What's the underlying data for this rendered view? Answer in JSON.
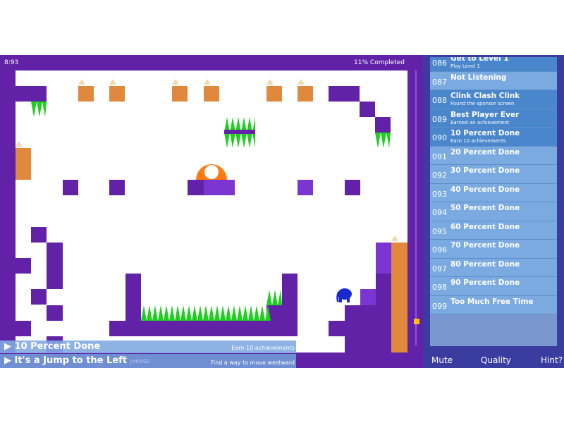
{
  "hud": {
    "timer": "8:93",
    "completion": "11% Completed"
  },
  "colors": {
    "wall": "#6222a8",
    "block_light": "#7b35d0",
    "crate": "#e0883c",
    "spikes": "#1fcf1f",
    "player": "#1a2ad0",
    "sidebar": "#3b3c9f",
    "achievement_done": "#4a86cc",
    "achievement_todo": "#7aaae0"
  },
  "player": {
    "icon": "elephant-icon"
  },
  "achievements": [
    {
      "num": "086",
      "title": "Get to Level 1",
      "desc": "Play Level 1",
      "done": true
    },
    {
      "num": "087",
      "title": "Not Listening",
      "desc": "",
      "done": false
    },
    {
      "num": "088",
      "title": "Clink Clash Clink",
      "desc": "Found the sponsor screen",
      "done": true
    },
    {
      "num": "089",
      "title": "Best Player Ever",
      "desc": "Earned an achievement",
      "done": true
    },
    {
      "num": "090",
      "title": "10 Percent Done",
      "desc": "Earn 10 achievements",
      "done": true
    },
    {
      "num": "091",
      "title": "20 Percent Done",
      "desc": "",
      "done": false
    },
    {
      "num": "092",
      "title": "30 Percent Done",
      "desc": "",
      "done": false
    },
    {
      "num": "093",
      "title": "40 Percent Done",
      "desc": "",
      "done": false
    },
    {
      "num": "094",
      "title": "50 Percent Done",
      "desc": "",
      "done": false
    },
    {
      "num": "095",
      "title": "60 Percent Done",
      "desc": "",
      "done": false
    },
    {
      "num": "096",
      "title": "70 Percent Done",
      "desc": "",
      "done": false
    },
    {
      "num": "097",
      "title": "80 Percent Done",
      "desc": "",
      "done": false
    },
    {
      "num": "098",
      "title": "90 Percent Done",
      "desc": "",
      "done": false
    },
    {
      "num": "099",
      "title": "Too Much Free Time",
      "desc": "",
      "done": false
    }
  ],
  "buttons": {
    "mute": "Mute",
    "quality": "Quality",
    "hint": "Hint?"
  },
  "notifications": [
    {
      "title": "10 Percent Done",
      "desc": "Earn 10 achievements"
    },
    {
      "title": "It's a Jump to the Left",
      "desc": "Find a way to move westward",
      "tag": "jmtb02"
    }
  ]
}
